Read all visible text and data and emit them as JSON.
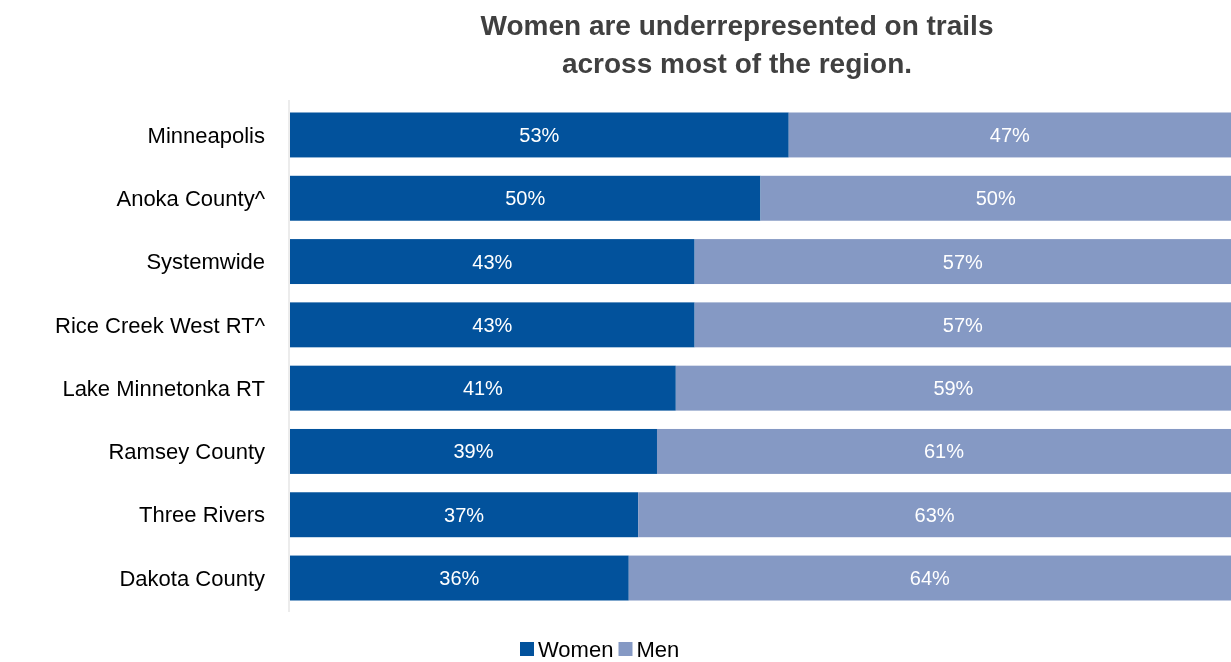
{
  "chart_data": {
    "type": "bar",
    "orientation": "horizontal",
    "stacked": true,
    "title": "Women are underrepresented on trails across most of the region.",
    "categories": [
      "Minneapolis",
      "Anoka County^",
      "Systemwide",
      "Rice Creek West RT^",
      "Lake Minnetonka RT",
      "Ramsey County",
      "Three Rivers",
      "Dakota County"
    ],
    "series": [
      {
        "name": "Women",
        "color": "#02529c",
        "values": [
          53,
          50,
          43,
          43,
          41,
          39,
          37,
          36
        ],
        "value_labels": [
          "53%",
          "50%",
          "43%",
          "43%",
          "41%",
          "39%",
          "37%",
          "36%"
        ]
      },
      {
        "name": "Men",
        "color": "#8599c4",
        "values": [
          47,
          50,
          57,
          57,
          59,
          61,
          63,
          64
        ],
        "value_labels": [
          "47%",
          "50%",
          "57%",
          "57%",
          "59%",
          "61%",
          "63%",
          "64%"
        ]
      }
    ],
    "legend": "bottom",
    "tick_labels": "y"
  }
}
